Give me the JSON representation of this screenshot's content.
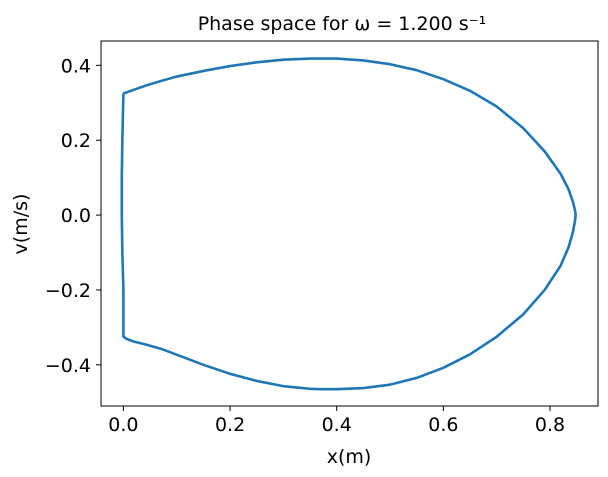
{
  "chart_data": {
    "type": "line",
    "title": "Phase space for ω = 1.200 s⁻¹",
    "xlabel": "x(m)",
    "ylabel": "v(m/s)",
    "xlim": [
      -0.042,
      0.89
    ],
    "ylim": [
      -0.51,
      0.465
    ],
    "xticks": [
      0.0,
      0.2,
      0.4,
      0.6,
      0.8
    ],
    "xtick_labels": [
      "0.0",
      "0.2",
      "0.4",
      "0.6",
      "0.8"
    ],
    "yticks": [
      -0.4,
      -0.2,
      0.0,
      0.2,
      0.4
    ],
    "ytick_labels": [
      "−0.4",
      "−0.2",
      "0.0",
      "0.2",
      "0.4"
    ],
    "grid": false,
    "legend": "none",
    "series": [
      {
        "color": "#1f77b4",
        "x": [
          0.0,
          0.005,
          0.01,
          0.02,
          0.04,
          0.07,
          0.1,
          0.15,
          0.2,
          0.25,
          0.3,
          0.35,
          0.4,
          0.45,
          0.5,
          0.55,
          0.6,
          0.65,
          0.7,
          0.75,
          0.79,
          0.82,
          0.835,
          0.843,
          0.847,
          0.848,
          0.847,
          0.843,
          0.835,
          0.82,
          0.79,
          0.75,
          0.7,
          0.65,
          0.6,
          0.55,
          0.5,
          0.45,
          0.4,
          0.37,
          0.35,
          0.3,
          0.25,
          0.2,
          0.15,
          0.1,
          0.07,
          0.04,
          0.02,
          0.01,
          0.005,
          0.0,
          0.0,
          -0.002,
          -0.003,
          -0.003,
          -0.002,
          0.0
        ],
        "y": [
          0.325,
          0.327,
          0.33,
          0.335,
          0.345,
          0.358,
          0.37,
          0.385,
          0.398,
          0.408,
          0.415,
          0.418,
          0.418,
          0.413,
          0.403,
          0.387,
          0.363,
          0.332,
          0.29,
          0.232,
          0.17,
          0.11,
          0.068,
          0.035,
          0.012,
          0.0,
          -0.015,
          -0.045,
          -0.085,
          -0.135,
          -0.2,
          -0.265,
          -0.325,
          -0.372,
          -0.408,
          -0.435,
          -0.453,
          -0.462,
          -0.465,
          -0.465,
          -0.464,
          -0.457,
          -0.443,
          -0.424,
          -0.4,
          -0.373,
          -0.357,
          -0.345,
          -0.338,
          -0.333,
          -0.33,
          -0.325,
          -0.2,
          -0.1,
          0.0,
          0.1,
          0.2,
          0.325
        ]
      }
    ]
  }
}
